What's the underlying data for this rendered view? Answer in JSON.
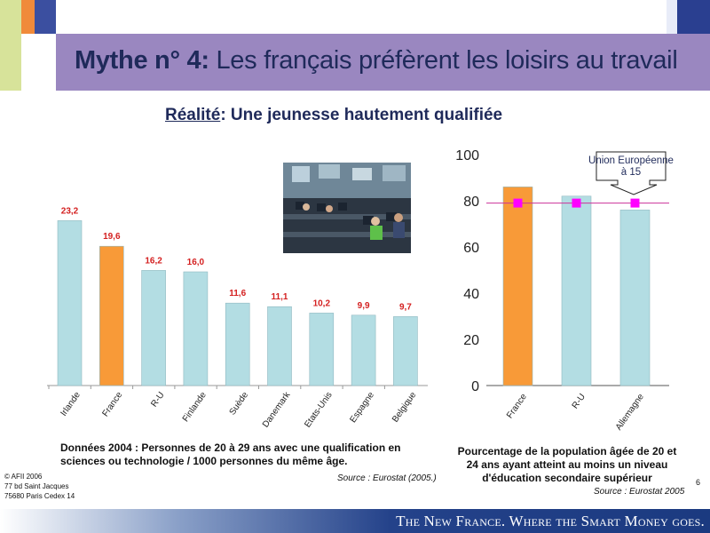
{
  "header": {
    "title_bold": "Mythe n° 4:",
    "title_rest": " Les français préfèrent les loisirs au travail"
  },
  "subtitle": {
    "underlined": "Réalité",
    "rest": ": Une jeunesse hautement qualifiée"
  },
  "colors": {
    "header_bar": "#9a87c0",
    "bar_blue": "#b3dde3",
    "bar_orange": "#f89a38",
    "value_red": "#d42020",
    "marker_magenta": "#ff00ff",
    "ref_line": "#cc3399"
  },
  "chart_data": [
    {
      "type": "bar",
      "categories": [
        "Irlande",
        "France",
        "R-U",
        "Finlande",
        "Suède",
        "Danemark",
        "Etats-Unis",
        "Espagne",
        "Belgique"
      ],
      "values": [
        23.2,
        19.6,
        16.2,
        16.0,
        11.6,
        11.1,
        10.2,
        9.9,
        9.7
      ],
      "value_labels": [
        "23,2",
        "19,6",
        "16,2",
        "16,0",
        "11,6",
        "11,1",
        "10,2",
        "9,9",
        "9,7"
      ],
      "highlight": "France",
      "ylim": [
        0,
        28
      ],
      "caption": "Données 2004 : Personnes de 20 à 29 ans avec une qualification en sciences ou technologie / 1000 personnes du même âge.",
      "source": "Source : Eurostat (2005.)"
    },
    {
      "type": "bar",
      "categories": [
        "France",
        "R-U",
        "Allemagne"
      ],
      "values": [
        86,
        82,
        76
      ],
      "highlight": "France",
      "ylim": [
        0,
        100
      ],
      "yticks": [
        0,
        20,
        40,
        60,
        80,
        100
      ],
      "reference": {
        "label": "Union Européenne à 15",
        "value": 79
      },
      "caption": "Pourcentage de la population âgée de 20 et 24 ans ayant atteint au moins un niveau d'éducation secondaire supérieur",
      "source": "Source : Eurostat 2005"
    }
  ],
  "footer": {
    "addr1": "© AFII 2006",
    "addr2": "77 bd Saint Jacques",
    "addr3": "75680 Paris Cedex 14",
    "page": "6",
    "slogan": "The New France. Where the Smart Money goes."
  }
}
